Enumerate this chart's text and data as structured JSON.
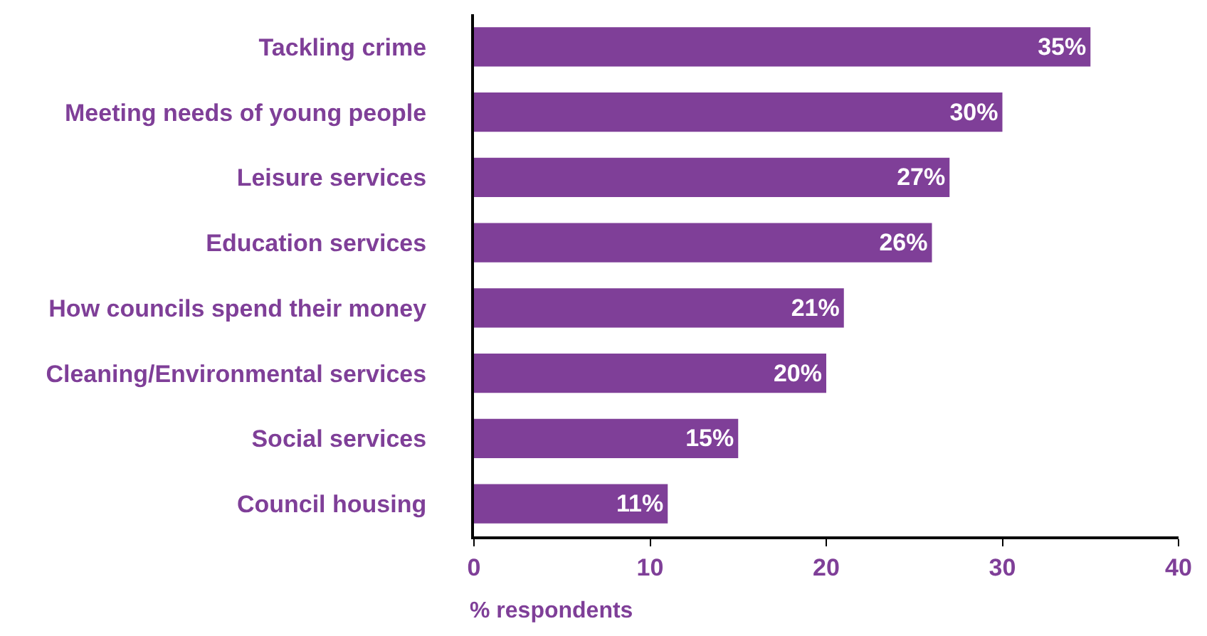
{
  "chart_data": {
    "type": "bar",
    "orientation": "horizontal",
    "xlabel": "% respondents",
    "categories": [
      "Tackling crime",
      "Meeting needs of young people",
      "Leisure services",
      "Education services",
      "How councils spend their money",
      "Cleaning/Environmental services",
      "Social services",
      "Council housing"
    ],
    "values": [
      35,
      30,
      27,
      26,
      21,
      20,
      15,
      11
    ],
    "value_labels": [
      "35%",
      "30%",
      "27%",
      "26%",
      "21%",
      "20%",
      "15%",
      "11%"
    ],
    "color": "#7f3f98",
    "xlim": [
      0,
      40
    ],
    "xticks": [
      0,
      10,
      20,
      30,
      40
    ]
  }
}
